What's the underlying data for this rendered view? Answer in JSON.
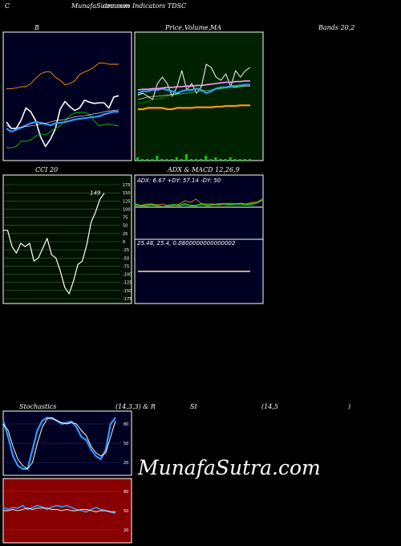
{
  "header": {
    "left": "C",
    "site_title": "MunafaSutra.com",
    "subtitle": "common Indicators TDSC"
  },
  "watermark": "MunafaSutra.com",
  "labels": {
    "bb": "B",
    "price": "Price,",
    "volume": "Volume,",
    "ma": "MA",
    "bands": "Bands 20,2",
    "cci": "CCI 20",
    "adx_macd": "ADX  & MACD 12,26,9",
    "stoch_a": "Stochastics",
    "stoch_b": "(14,3,3) & R",
    "rsi_a": "SI",
    "rsi_b": "(14,5",
    "rsi_c": ")"
  },
  "colors": {
    "bb_bg": "#000022",
    "pv_bg": "#002200",
    "cci_bg": "#001100",
    "adx_bg": "#000022",
    "stoch_bg": "#000022",
    "rsi_bg": "#880000",
    "white": "#ffffff",
    "blue": "#3399ff",
    "green": "#00cc00",
    "orange": "#ff9900",
    "pink": "#ff99ff",
    "grid_green": "#336633",
    "grid_red": "#aa3333",
    "grid_blue": "#333366"
  },
  "chart_data": [
    {
      "id": "bb",
      "type": "line",
      "series": [
        {
          "values": [
            140,
            150,
            150,
            137,
            118,
            124,
            138,
            163,
            178,
            167,
            151,
            120,
            108,
            116,
            122,
            118,
            106,
            109,
            111,
            110,
            110,
            118,
            101,
            99
          ]
        },
        {
          "values": [
            150,
            155,
            152,
            149,
            145,
            142,
            140,
            141,
            143,
            145,
            142,
            141,
            140,
            138,
            136,
            135,
            134,
            133,
            132,
            131,
            128,
            126,
            124,
            124
          ]
        },
        {
          "values": [
            180,
            180,
            178,
            170,
            170,
            168,
            162,
            158,
            160,
            155,
            150,
            146,
            138,
            130,
            126,
            125,
            125,
            128,
            138,
            146,
            144,
            143,
            145,
            146
          ]
        },
        {
          "values": [
            88,
            88,
            87,
            85,
            85,
            80,
            72,
            65,
            62,
            62,
            70,
            75,
            82,
            80,
            76,
            66,
            62,
            59,
            54,
            48,
            48,
            50,
            50,
            50
          ]
        },
        {
          "values": [
            145,
            150,
            149,
            148,
            147,
            146,
            145,
            143,
            142,
            140,
            138,
            137,
            136,
            134,
            132,
            131,
            130,
            129,
            127,
            126,
            124,
            123,
            122,
            121
          ]
        }
      ]
    },
    {
      "id": "price_volume",
      "type": "line",
      "series": [
        {
          "values": [
            98,
            95,
            100,
            105,
            80,
            70,
            80,
            100,
            85,
            60,
            90,
            80,
            95,
            85,
            50,
            55,
            70,
            75,
            65,
            85,
            60,
            70,
            60,
            55
          ]
        },
        {
          "values": [
            95,
            92,
            92,
            90,
            90,
            88,
            90,
            92,
            95,
            92,
            90,
            90,
            88,
            90,
            95,
            92,
            88,
            86,
            86,
            84,
            84,
            83,
            82,
            82
          ]
        },
        {
          "values": [
            105,
            103,
            101,
            100,
            100,
            99,
            98,
            97,
            96,
            96,
            95,
            94,
            93,
            92,
            91,
            90,
            89,
            88,
            87,
            86,
            86,
            85,
            84,
            84
          ]
        },
        {
          "values": [
            110,
            110,
            108,
            105,
            104,
            103,
            100,
            98,
            97,
            96,
            95,
            94,
            93,
            92,
            91,
            90,
            89,
            88,
            87,
            86,
            85,
            84,
            83,
            83
          ]
        },
        {
          "values": [
            90,
            89,
            89,
            88,
            88,
            87,
            86,
            86,
            85,
            85,
            84,
            84,
            83,
            83,
            82,
            81,
            80,
            79,
            78,
            78,
            77,
            77,
            76,
            76
          ]
        },
        {
          "values": [
            120,
            120,
            118,
            118,
            118,
            118,
            120,
            120,
            118,
            118,
            118,
            118,
            117,
            117,
            117,
            117,
            116,
            116,
            115,
            115,
            115,
            114,
            114,
            114
          ]
        }
      ],
      "volume": [
        2,
        1,
        1,
        1,
        3,
        1,
        1,
        1,
        2,
        1,
        4,
        1,
        1,
        1,
        3,
        1,
        2,
        1,
        1,
        2,
        1,
        1,
        1,
        1
      ]
    },
    {
      "id": "cci",
      "type": "line",
      "ylim": [
        -175,
        175
      ],
      "yticks": [
        "175",
        "150",
        "125",
        "100",
        "75",
        "50",
        "25",
        "0",
        "-25",
        "-50",
        "-75",
        "-100",
        "-125",
        "-150",
        "-175"
      ],
      "last_label": "149",
      "values": [
        35,
        35,
        -15,
        -35,
        -5,
        -15,
        -5,
        -60,
        -50,
        -20,
        10,
        -40,
        -50,
        -90,
        -140,
        -160,
        -120,
        -70,
        -60,
        -10,
        60,
        90,
        130,
        149
      ]
    },
    {
      "id": "adx",
      "type": "line",
      "readout": "ADX: 6.67  +DY: 57.14  -DY: 50",
      "series": [
        {
          "values": [
            36,
            38,
            38,
            37,
            38,
            40,
            38,
            37,
            38,
            36,
            38,
            38,
            36,
            38,
            37,
            36,
            36,
            37,
            36,
            36,
            37,
            36,
            34,
            30
          ]
        },
        {
          "values": [
            38,
            38,
            36,
            36,
            37,
            36,
            38,
            38,
            36,
            32,
            34,
            30,
            36,
            36,
            36,
            38,
            36,
            35,
            36,
            35,
            36,
            34,
            34,
            30
          ]
        },
        {
          "values": [
            40,
            40,
            40,
            40,
            40,
            40,
            40,
            40,
            40,
            40,
            40,
            40,
            40,
            40,
            40,
            40,
            40,
            40,
            40,
            40,
            40,
            40,
            40,
            40
          ]
        }
      ]
    },
    {
      "id": "macd",
      "type": "line",
      "readout": "25.48,  25.4,  0.0800000000000002",
      "values": [
        0,
        0,
        0,
        0,
        0,
        0,
        0,
        0,
        0,
        0,
        0,
        0,
        0,
        0,
        0,
        0,
        0,
        0,
        0,
        0,
        0,
        0,
        0,
        0
      ]
    },
    {
      "id": "stoch",
      "type": "line",
      "yticks": [
        "80",
        "50",
        "20"
      ],
      "series": [
        {
          "values": [
            85,
            60,
            30,
            15,
            10,
            10,
            40,
            70,
            85,
            90,
            88,
            85,
            80,
            82,
            84,
            75,
            60,
            55,
            40,
            30,
            25,
            40,
            80,
            90
          ]
        },
        {
          "values": [
            80,
            70,
            45,
            25,
            15,
            10,
            20,
            50,
            75,
            88,
            90,
            85,
            82,
            80,
            82,
            80,
            70,
            62,
            45,
            35,
            30,
            35,
            60,
            85
          ]
        }
      ]
    },
    {
      "id": "rsi",
      "type": "line",
      "yticks": [
        "80",
        "50",
        "20"
      ],
      "series": [
        {
          "values": [
            55,
            52,
            55,
            54,
            58,
            52,
            55,
            58,
            56,
            52,
            56,
            58,
            56,
            58,
            55,
            52,
            50,
            48,
            52,
            55,
            52,
            50,
            48,
            46
          ]
        },
        {
          "values": [
            50,
            50,
            52,
            50,
            52,
            54,
            52,
            54,
            54,
            54,
            52,
            52,
            50,
            52,
            50,
            50,
            52,
            52,
            50,
            48,
            50,
            50,
            48,
            48
          ]
        }
      ]
    }
  ]
}
